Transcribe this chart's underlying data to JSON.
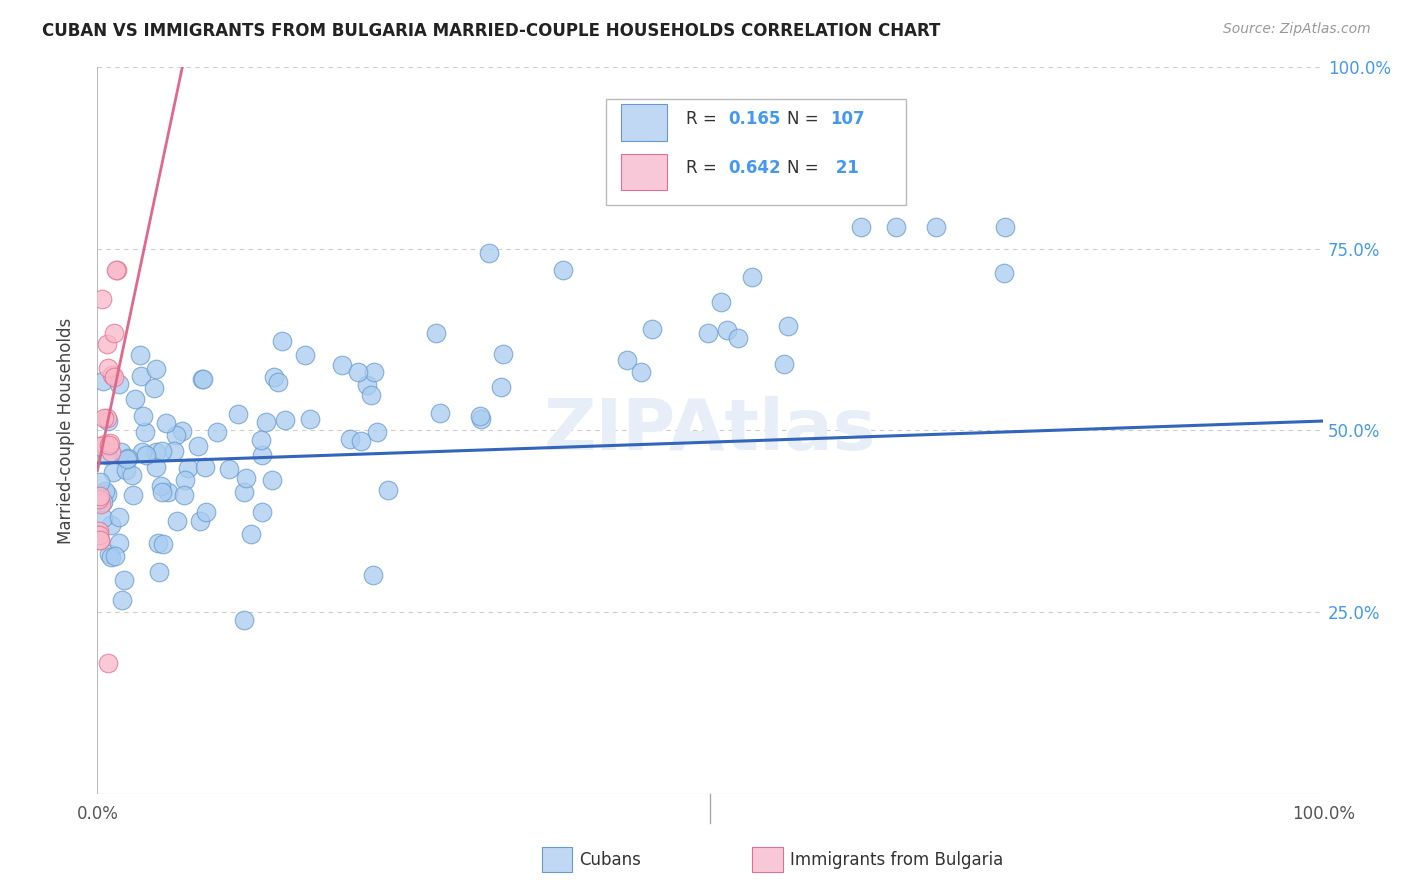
{
  "title": "CUBAN VS IMMIGRANTS FROM BULGARIA MARRIED-COUPLE HOUSEHOLDS CORRELATION CHART",
  "source": "Source: ZipAtlas.com",
  "ylabel": "Married-couple Households",
  "xlim": [
    0,
    1
  ],
  "ylim": [
    0,
    1
  ],
  "cubans_R": 0.165,
  "cubans_N": 107,
  "bulgaria_R": 0.642,
  "bulgaria_N": 21,
  "cubans_color": "#A8CCF0",
  "bulgaria_color": "#F9B8C8",
  "cubans_edge_color": "#6699CC",
  "bulgaria_edge_color": "#E07090",
  "cubans_line_color": "#3366BB",
  "bulgaria_line_color": "#E06888",
  "legend_box_color_cubans": "#C0D8F4",
  "legend_box_color_bulgaria": "#F9C8D8",
  "bg_color": "#FFFFFF",
  "grid_color": "#CCCCCC",
  "right_tick_color": "#4499EE",
  "watermark_color": "#E8EEF8",
  "legend_label_cubans": "Cubans",
  "legend_label_bulgaria": "Immigrants from Bulgaria"
}
